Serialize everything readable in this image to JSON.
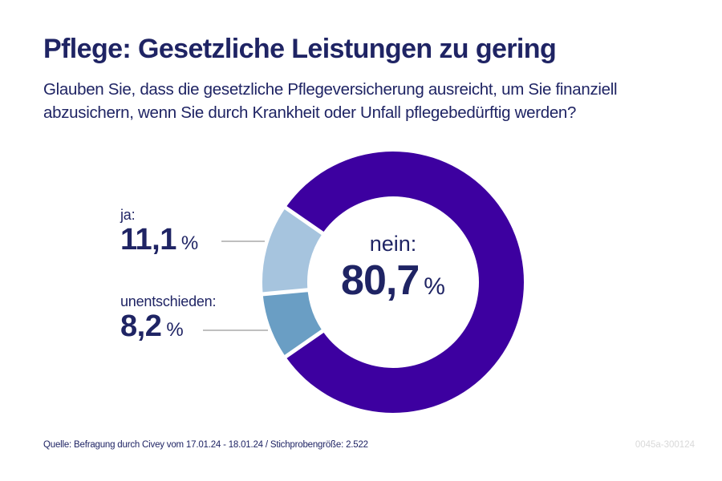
{
  "header": {
    "title": "Pflege: Gesetzliche Leistungen zu gering",
    "subtitle": "Glauben Sie, dass die gesetzliche Pflegeversicherung ausreicht, um Sie finanziell abzusichern, wenn Sie durch Krankheit oder Unfall pflegebedürftig werden?"
  },
  "chart_data": {
    "type": "pie",
    "variant": "donut",
    "title": "Pflege: Gesetzliche Leistungen zu gering",
    "subtitle": "Glauben Sie, dass die gesetzliche Pflegeversicherung ausreicht, um Sie finanziell abzusichern, wenn Sie durch Krankheit oder Unfall pflegebedürftig werden?",
    "unit": "%",
    "slices": [
      {
        "key": "ja",
        "label": "ja:",
        "value": 11.1,
        "display": "11,1",
        "color": "#a6c4de"
      },
      {
        "key": "unentschieden",
        "label": "unentschieden:",
        "value": 8.2,
        "display": "8,2",
        "color": "#6a9ec4"
      },
      {
        "key": "nein",
        "label": "nein:",
        "value": 80.7,
        "display": "80,7",
        "color": "#3d00a0"
      }
    ],
    "leader_line_color": "#999999"
  },
  "labels": {
    "percent_sign": "%"
  },
  "footer": {
    "source": "Quelle: Befragung durch Civey vom 17.01.24 - 18.01.24 / Stichprobengröße: 2.522",
    "code": "0045a-300124"
  }
}
